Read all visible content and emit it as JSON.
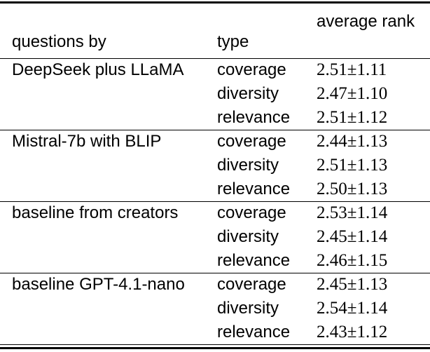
{
  "colors": {
    "background": "#ffffff",
    "text": "#000000",
    "rule": "#000000"
  },
  "table": {
    "header": {
      "questions_by": "questions by",
      "type": "type",
      "average_rank": "average rank"
    },
    "groups": [
      {
        "name": "DeepSeek plus LLaMA",
        "rows": [
          {
            "type": "coverage",
            "rank": "2.51±1.11"
          },
          {
            "type": "diversity",
            "rank": "2.47±1.10"
          },
          {
            "type": "relevance",
            "rank": "2.51±1.12"
          }
        ]
      },
      {
        "name": "Mistral-7b with BLIP",
        "rows": [
          {
            "type": "coverage",
            "rank": "2.44±1.13"
          },
          {
            "type": "diversity",
            "rank": "2.51±1.13"
          },
          {
            "type": "relevance",
            "rank": "2.50±1.13"
          }
        ]
      },
      {
        "name": "baseline from creators",
        "rows": [
          {
            "type": "coverage",
            "rank": "2.53±1.14"
          },
          {
            "type": "diversity",
            "rank": "2.45±1.14"
          },
          {
            "type": "relevance",
            "rank": "2.46±1.15"
          }
        ]
      },
      {
        "name": "baseline GPT-4.1-nano",
        "rows": [
          {
            "type": "coverage",
            "rank": "2.45±1.13"
          },
          {
            "type": "diversity",
            "rank": "2.54±1.14"
          },
          {
            "type": "relevance",
            "rank": "2.43±1.12"
          }
        ]
      }
    ]
  },
  "chart_data": {
    "type": "table",
    "columns": [
      "questions by",
      "type",
      "average rank"
    ],
    "rows": [
      [
        "DeepSeek plus LLaMA",
        "coverage",
        "2.51±1.11"
      ],
      [
        "",
        "diversity",
        "2.47±1.10"
      ],
      [
        "",
        "relevance",
        "2.51±1.12"
      ],
      [
        "Mistral-7b with BLIP",
        "coverage",
        "2.44±1.13"
      ],
      [
        "",
        "diversity",
        "2.51±1.13"
      ],
      [
        "",
        "relevance",
        "2.50±1.13"
      ],
      [
        "baseline from creators",
        "coverage",
        "2.53±1.14"
      ],
      [
        "",
        "diversity",
        "2.45±1.14"
      ],
      [
        "",
        "relevance",
        "2.46±1.15"
      ],
      [
        "baseline GPT-4.1-nano",
        "coverage",
        "2.45±1.13"
      ],
      [
        "",
        "diversity",
        "2.54±1.14"
      ],
      [
        "",
        "relevance",
        "2.43±1.12"
      ]
    ]
  }
}
